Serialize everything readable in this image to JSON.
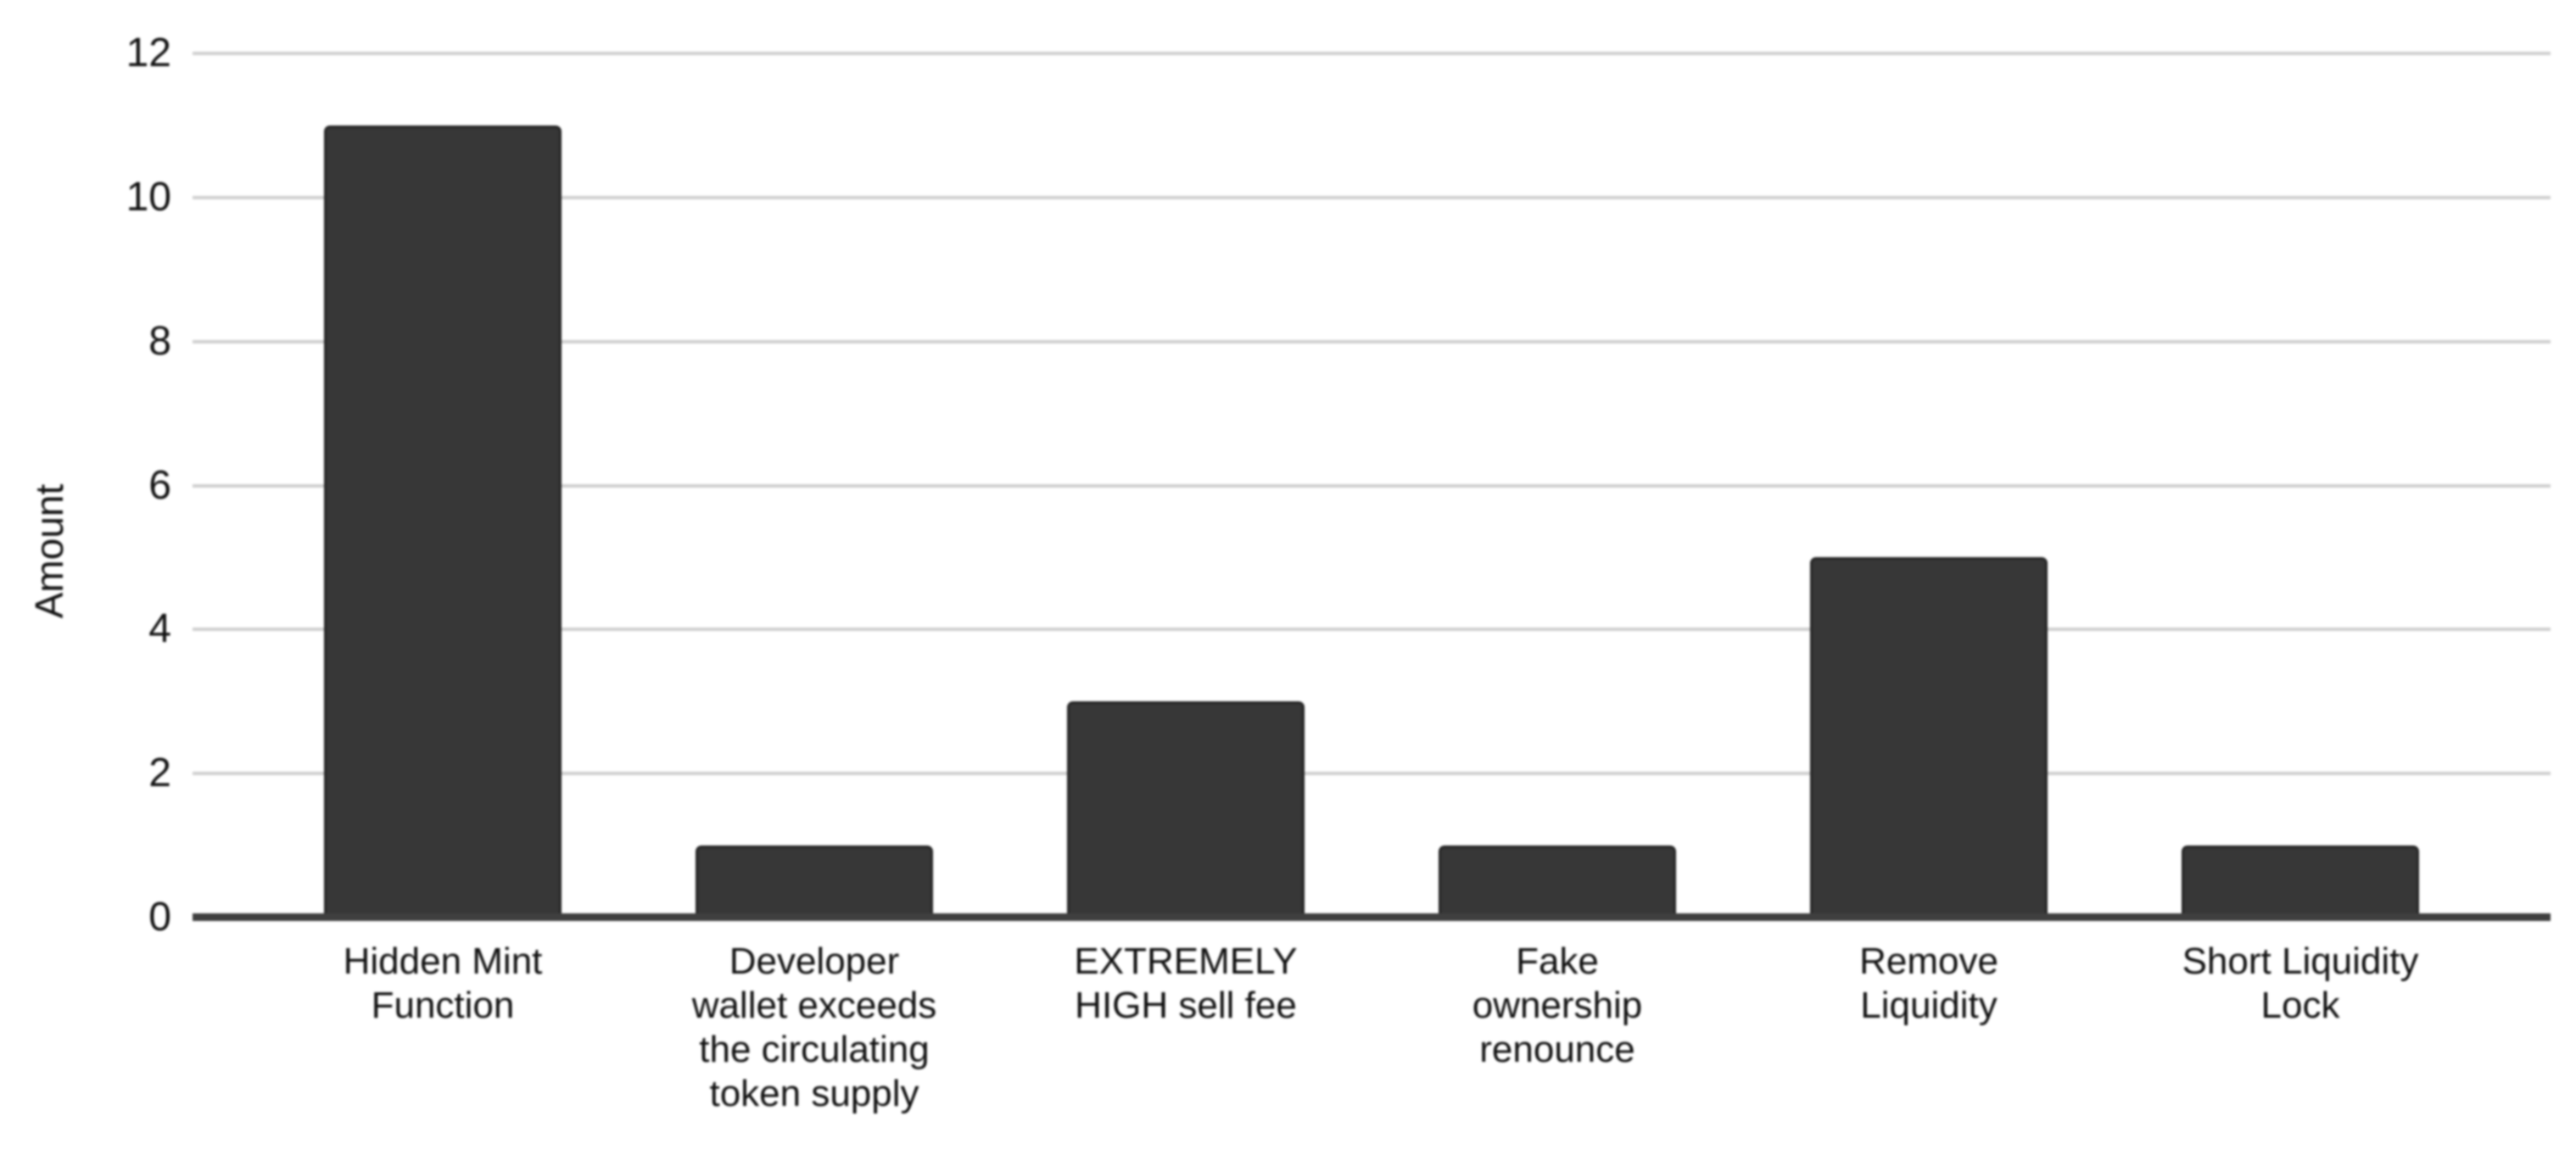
{
  "chart_data": {
    "type": "bar",
    "title": "",
    "xlabel": "",
    "ylabel": "Amount",
    "categories": [
      "Hidden Mint Function",
      "Developer wallet exceeds the circulating token supply",
      "EXTREMELY HIGH sell fee",
      "Fake ownership renounce",
      "Remove Liquidity",
      "Short Liquidity Lock"
    ],
    "category_display": [
      "Hidden Mint\nFunction",
      "Developer\nwallet exceeds\nthe circulating\ntoken supply",
      "EXTREMELY\nHIGH sell fee",
      "Fake\nownership\nrenounce",
      "Remove\nLiquidity",
      "Short Liquidity\nLock"
    ],
    "values": [
      11,
      1,
      3,
      1,
      5,
      1
    ],
    "ylim": [
      0,
      12
    ],
    "yticks": [
      12,
      10,
      8,
      6,
      4,
      2,
      0
    ],
    "grid": "horizontal",
    "legend": "none",
    "colors": {
      "bar": "#373737",
      "bar_border": "#262626",
      "gridline": "#d0d0d0",
      "axis_line": "#3f3f3f",
      "text": "#111111",
      "background": "#ffffff"
    }
  }
}
